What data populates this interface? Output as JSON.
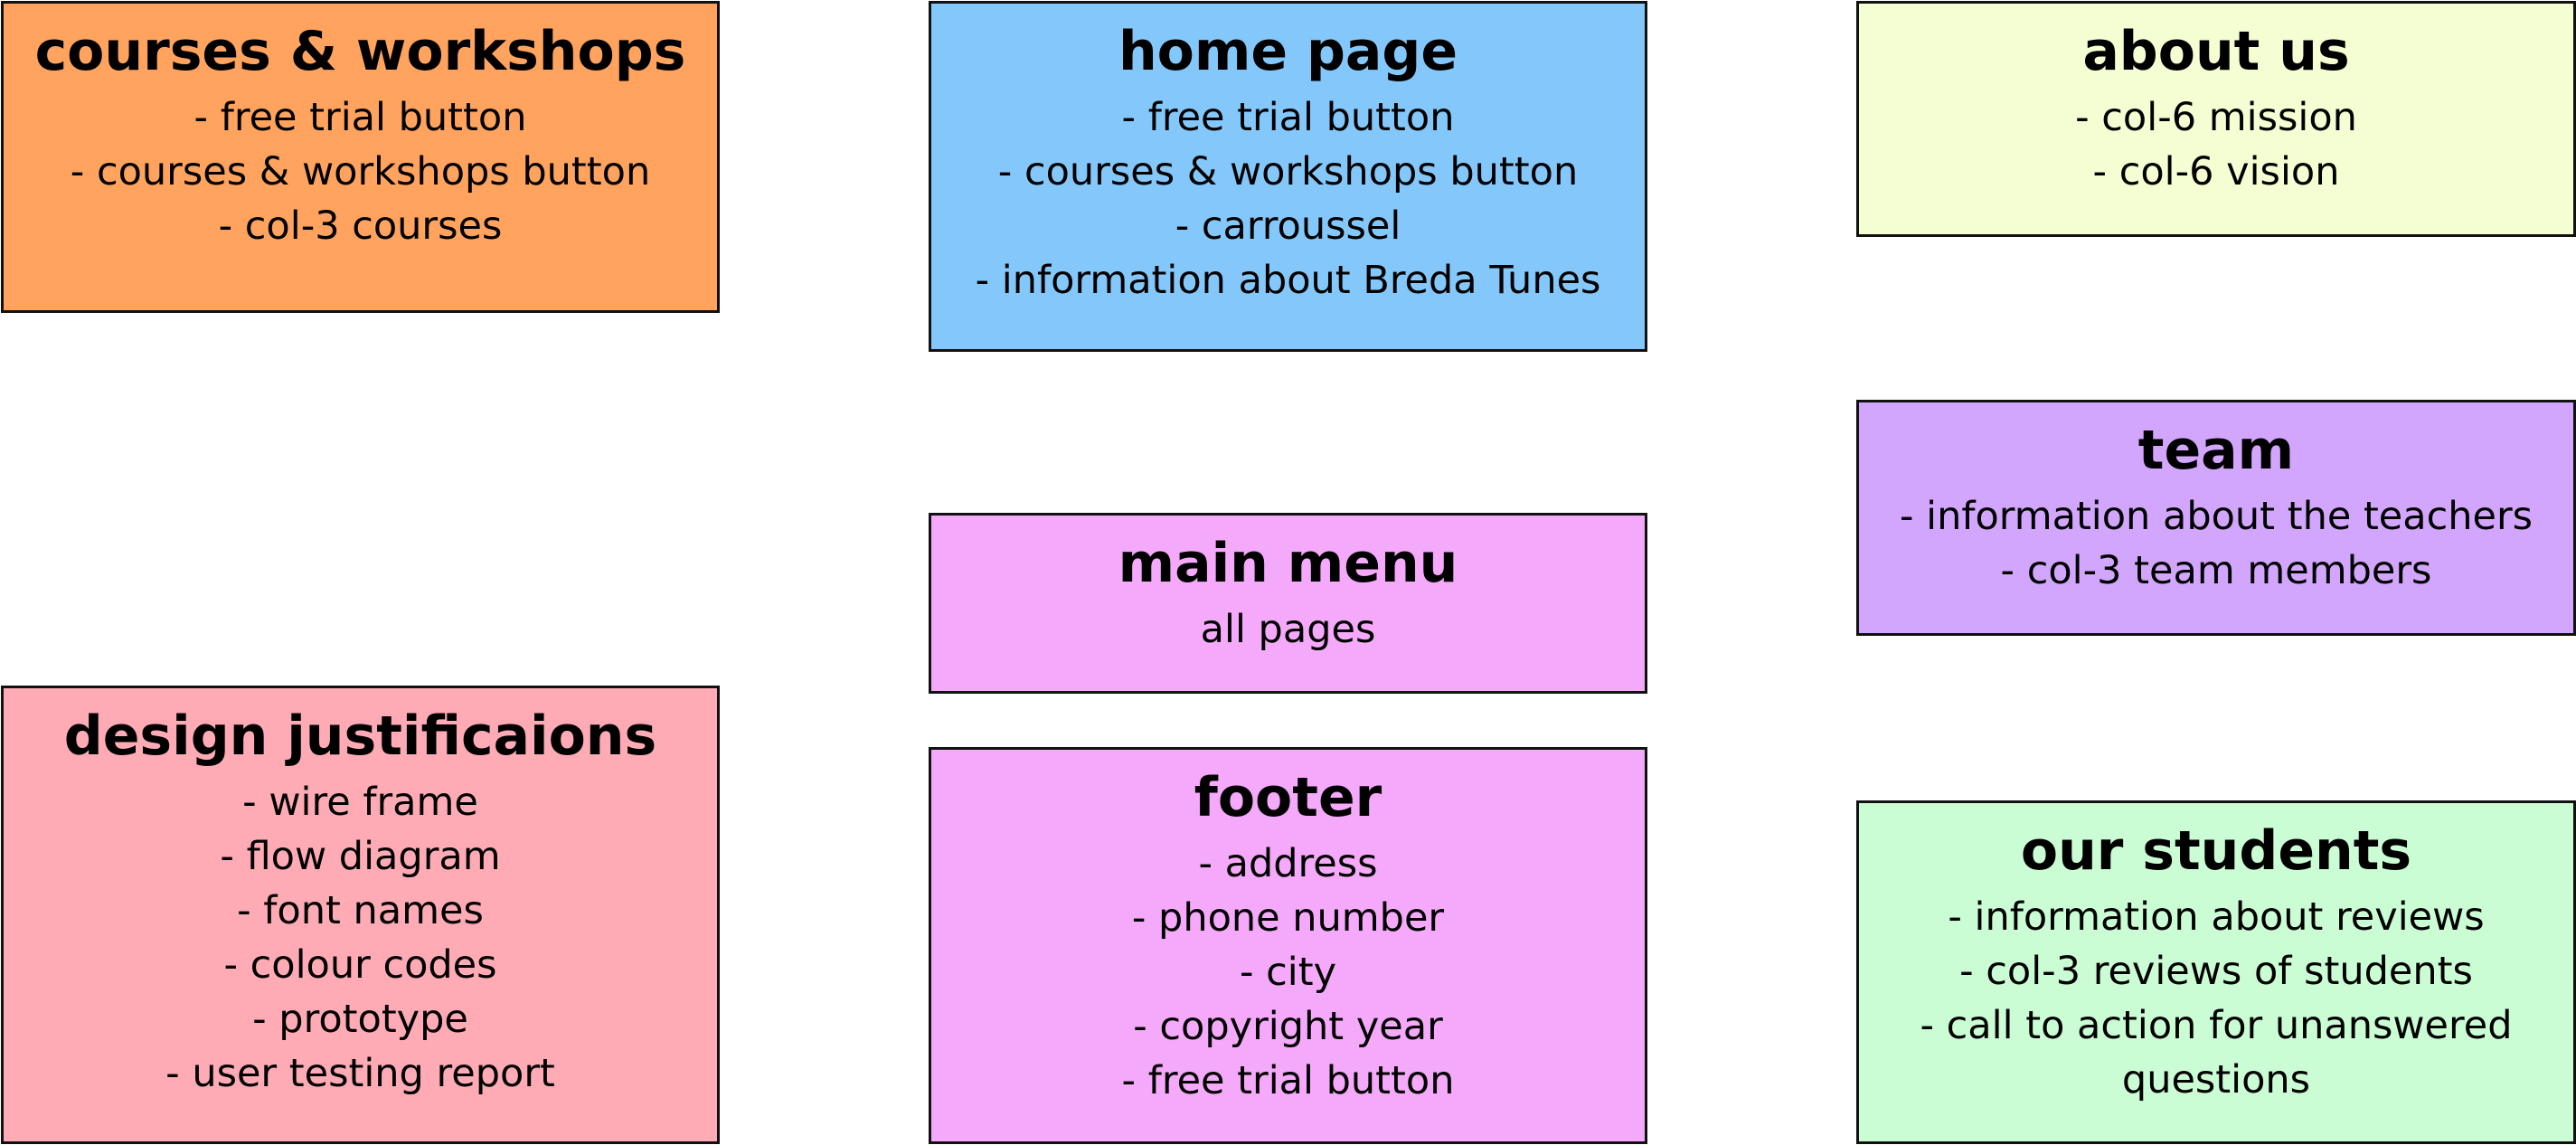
{
  "cards": {
    "courses": {
      "title": "courses & workshops",
      "color": "#FFA35F",
      "items": [
        "- free trial button",
        "- courses & workshops button",
        "- col-3 courses"
      ]
    },
    "home": {
      "title": "home page",
      "color": "#84C8FB",
      "items": [
        "- free trial button",
        "- courses & workshops button",
        "- carroussel",
        "- information about Breda Tunes"
      ]
    },
    "about": {
      "title": "about us",
      "color": "#F5FED2",
      "items": [
        "- col-6 mission",
        "- col-6 vision"
      ]
    },
    "team": {
      "title": "team",
      "color": "#D1A6FC",
      "items": [
        "- information about the teachers",
        "- col-3 team members"
      ]
    },
    "menu": {
      "title": "main menu",
      "color": "#F5A9FA",
      "items": [
        "all pages"
      ]
    },
    "design": {
      "title": "design justificaions",
      "color": "#FFABB5",
      "items": [
        "- wire frame",
        "- flow diagram",
        "- font names",
        "- colour codes",
        "- prototype",
        "- user testing report"
      ]
    },
    "footer": {
      "title": "footer",
      "color": "#F5A9FA",
      "items": [
        "- address",
        "- phone number",
        "- city",
        "- copyright year",
        "- free trial button"
      ]
    },
    "students": {
      "title": "our students",
      "color": "#CBFDD5",
      "items": [
        "- information about reviews",
        "- col-3 reviews of students",
        "- call to action for unanswered questions"
      ]
    }
  }
}
